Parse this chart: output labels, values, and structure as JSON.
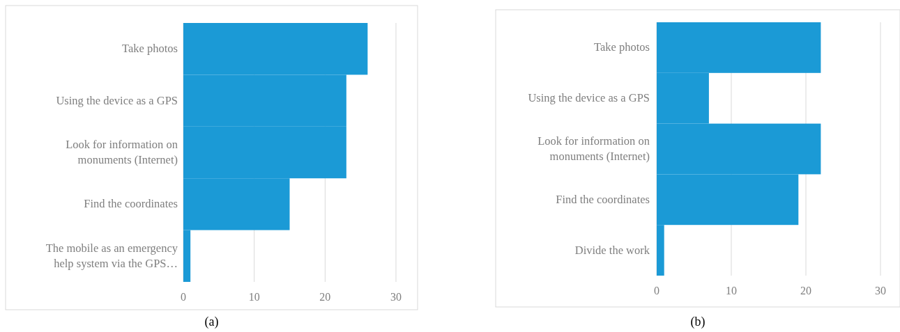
{
  "chart_data": [
    {
      "type": "bar",
      "orientation": "horizontal",
      "categories": [
        "Take photos",
        "Using the device as a GPS",
        "Look for information on monuments (Internet)",
        "Find the coordinates",
        "The mobile as an emergency help system via the GPS…"
      ],
      "values": [
        26,
        23,
        23,
        15,
        1
      ],
      "color": "#1b9ad6",
      "xlim": [
        0,
        30
      ],
      "xticks": [
        0,
        10,
        20,
        30
      ],
      "grid": "x",
      "annotations": [
        "(a)"
      ]
    },
    {
      "type": "bar",
      "orientation": "horizontal",
      "categories": [
        "Take photos",
        "Using the device as a GPS",
        "Look for information on monuments (Internet)",
        "Find the coordinates",
        "Divide the work"
      ],
      "values": [
        22,
        7,
        22,
        19,
        1
      ],
      "color": "#1b9ad6",
      "xlim": [
        0,
        30
      ],
      "xticks": [
        0,
        10,
        20,
        30
      ],
      "grid": "x",
      "annotations": [
        "(b)"
      ]
    }
  ]
}
